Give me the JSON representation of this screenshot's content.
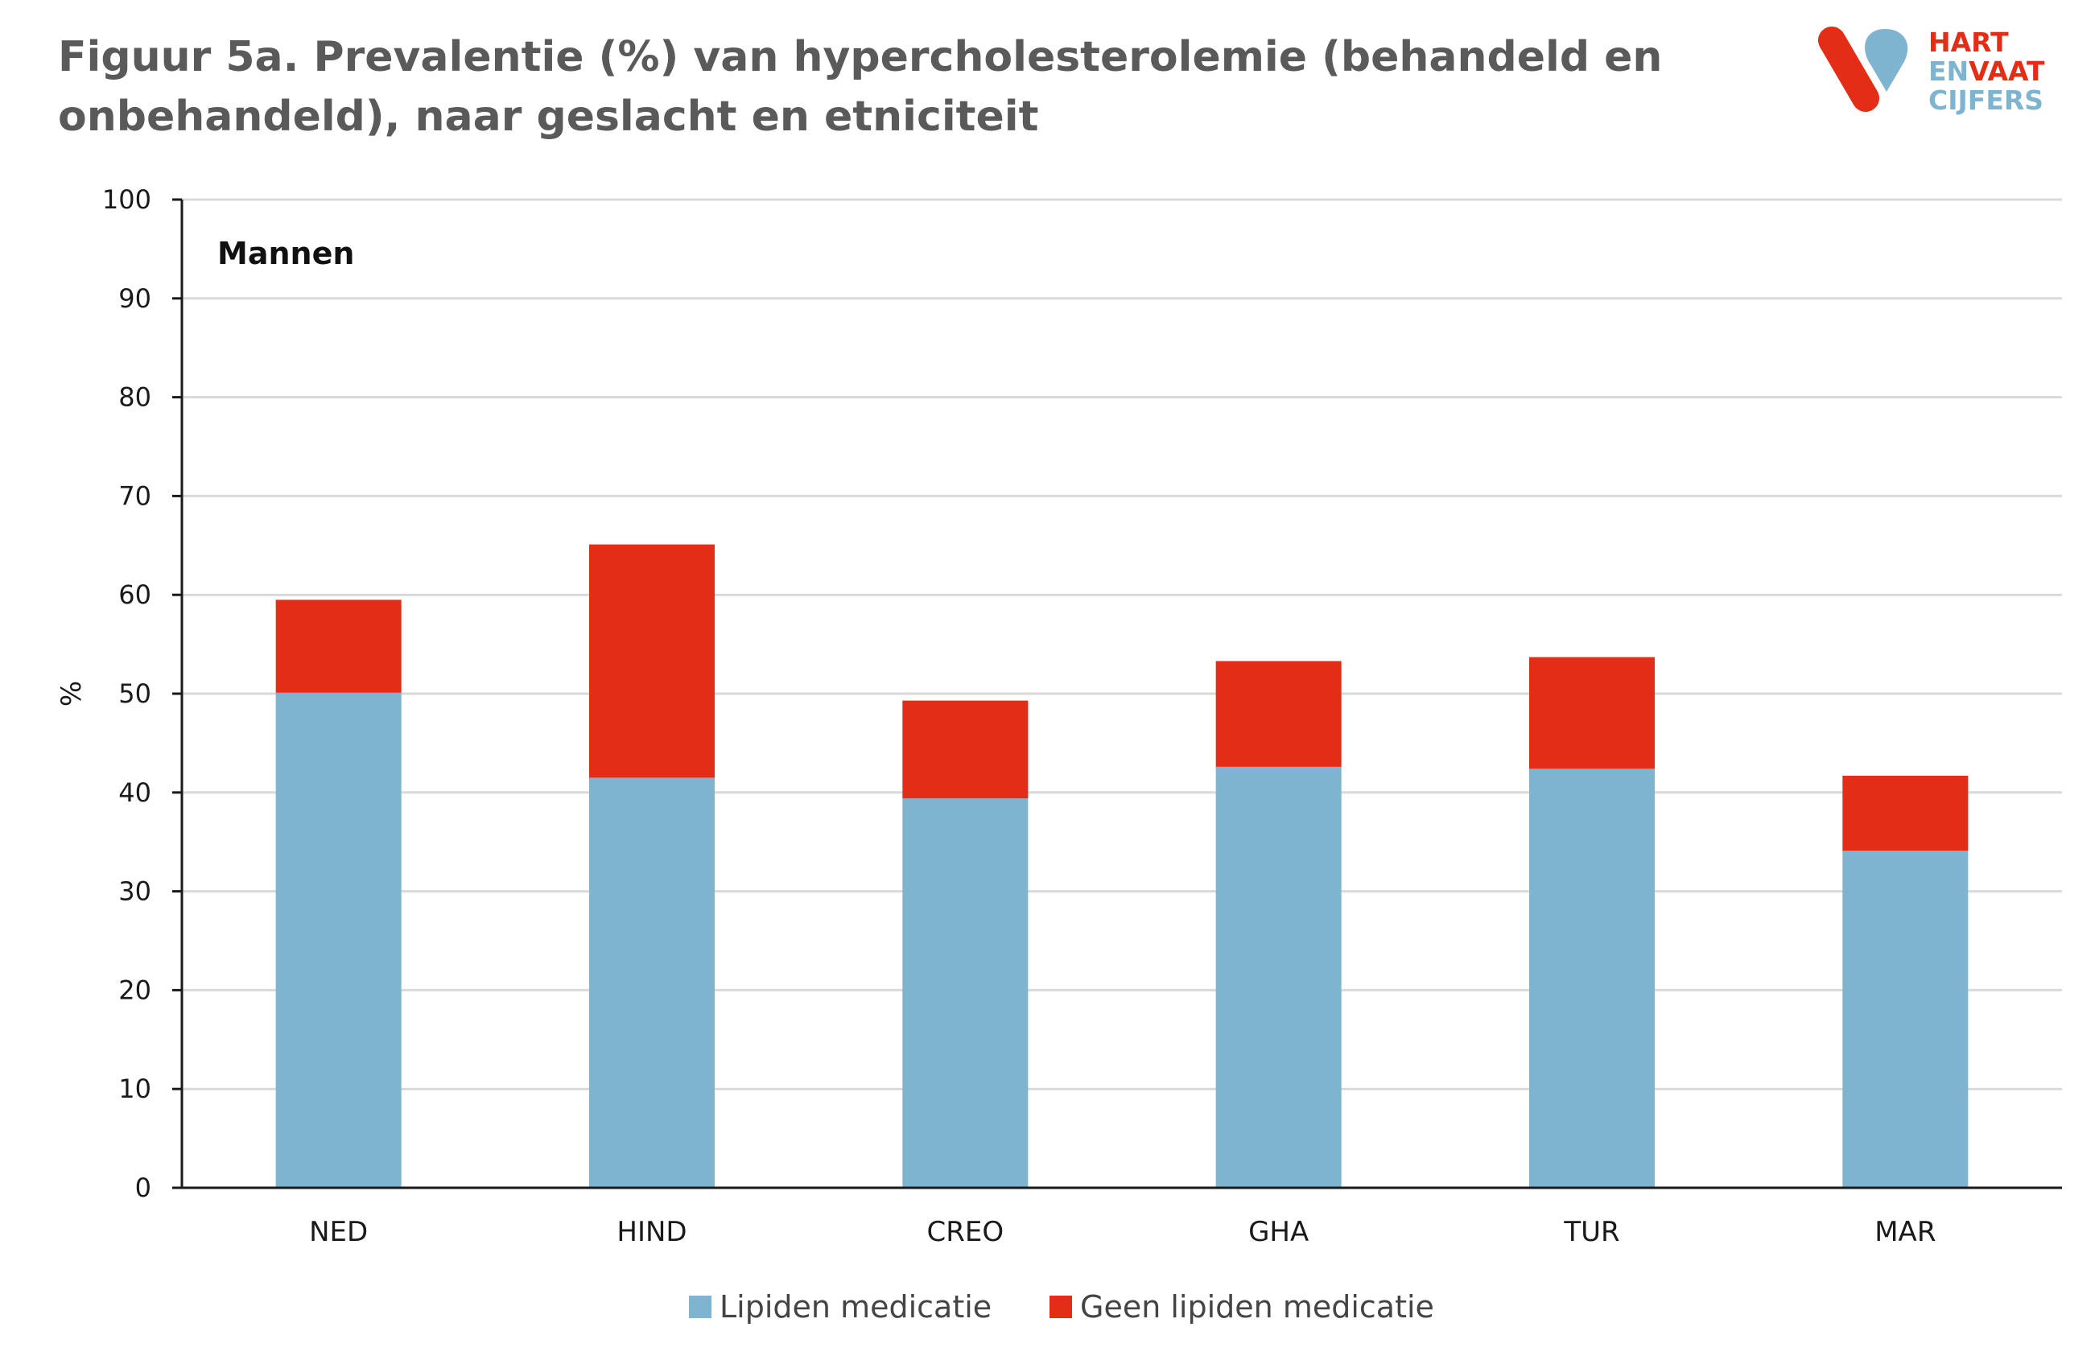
{
  "title": {
    "line1": "Figuur 5a. Prevalentie (%) van hypercholesterolemie (behandeld en",
    "line2": "onbehandeld), naar geslacht en etniciteit"
  },
  "logo": {
    "line1": "HART",
    "line2_part1": "EN",
    "line2_part2": "VAAT",
    "line3": "CIJFERS",
    "icon": "heart-and-vessels-logo-icon"
  },
  "colors": {
    "lipiden": "#7fb4d0",
    "geen": "#e32d16",
    "title": "#5a5a5a",
    "logo_red": "#e32d16",
    "logo_blue": "#7fb4d0"
  },
  "chart_data": {
    "type": "bar",
    "stacked": true,
    "panel_label": "Mannen",
    "categories": [
      "NED",
      "HIND",
      "CREO",
      "GHA",
      "TUR",
      "MAR"
    ],
    "series": [
      {
        "name": "Lipiden medicatie",
        "values": [
          50.1,
          41.5,
          39.4,
          42.6,
          42.4,
          34.1
        ]
      },
      {
        "name": "Geen lipiden medicatie",
        "values": [
          9.4,
          23.6,
          9.9,
          10.7,
          11.3,
          7.6
        ]
      }
    ],
    "ylabel": "%",
    "xlabel": "",
    "ylim": [
      0,
      100
    ],
    "yticks": [
      0,
      10,
      20,
      30,
      40,
      50,
      60,
      70,
      80,
      90,
      100
    ],
    "grid": true,
    "legend_position": "bottom"
  }
}
